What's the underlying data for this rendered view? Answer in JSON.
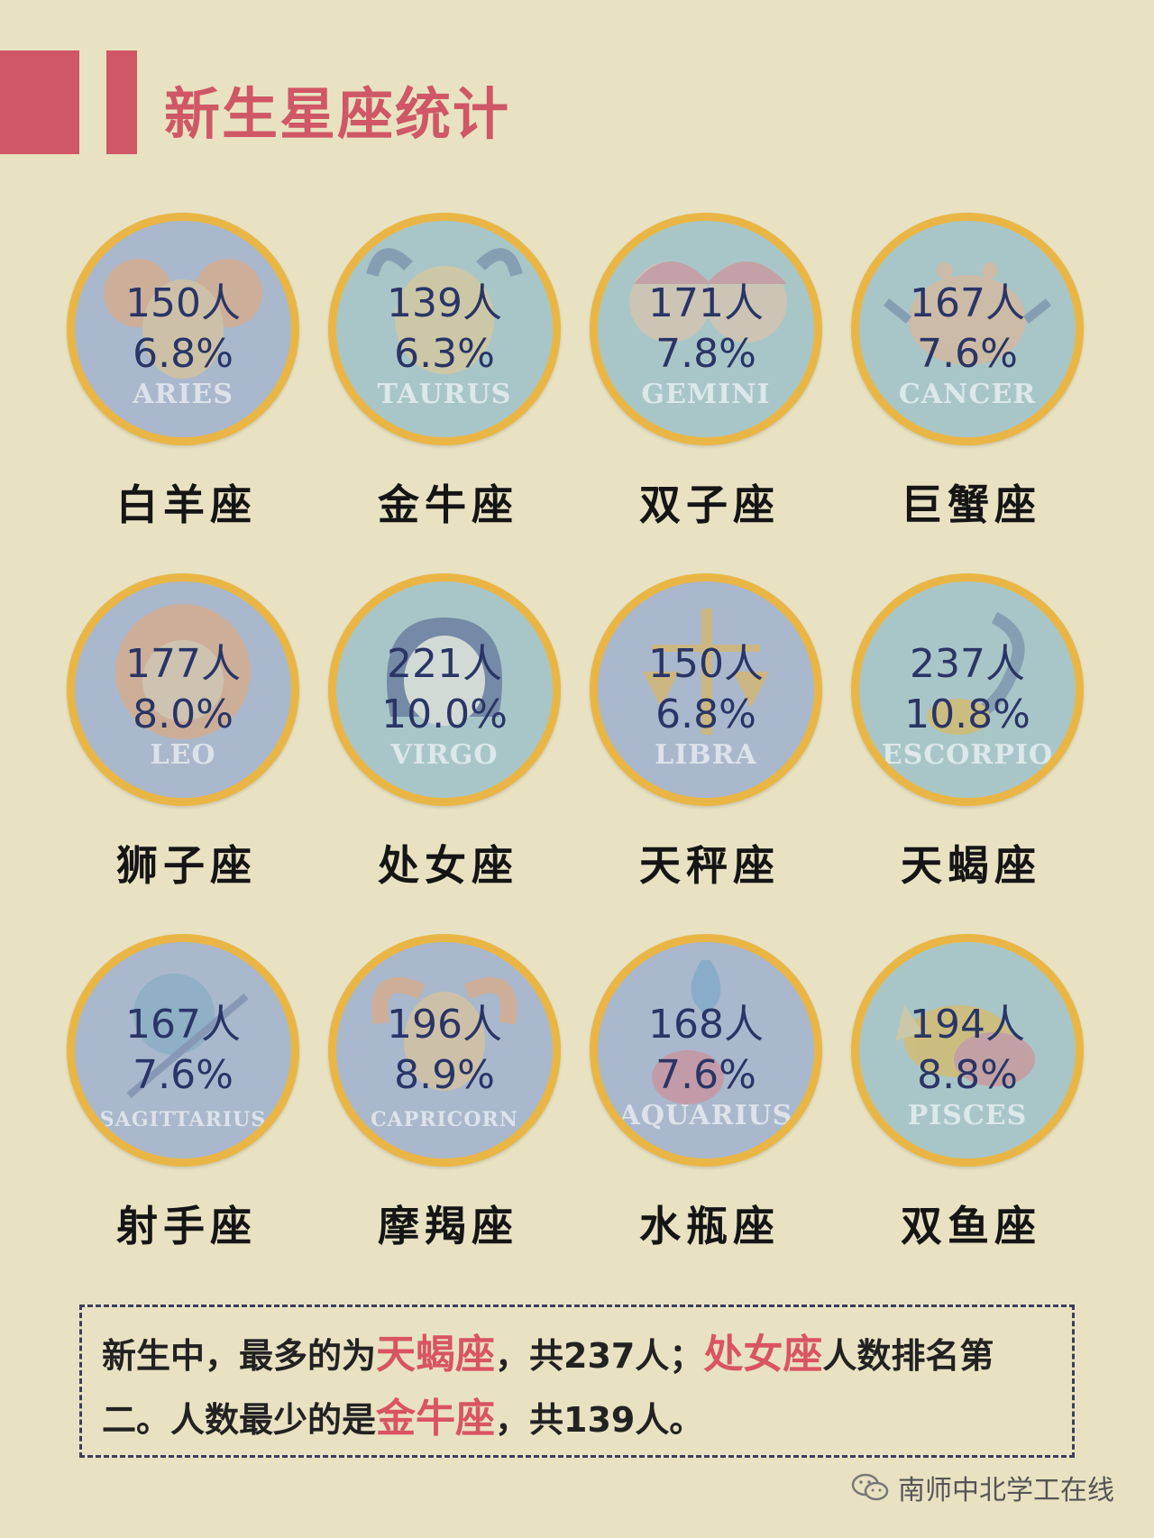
{
  "header": {
    "title": "新生星座统计"
  },
  "signs": [
    {
      "count": "150人",
      "pct": "6.8%",
      "en": "ARIES",
      "cn": "白羊座",
      "tone": "blue",
      "icon": "ram-icon"
    },
    {
      "count": "139人",
      "pct": "6.3%",
      "en": "TAURUS",
      "cn": "金牛座",
      "tone": "teal",
      "icon": "bull-icon"
    },
    {
      "count": "171人",
      "pct": "7.8%",
      "en": "GEMINI",
      "cn": "双子座",
      "tone": "teal",
      "icon": "twins-icon"
    },
    {
      "count": "167人",
      "pct": "7.6%",
      "en": "CANCER",
      "cn": "巨蟹座",
      "tone": "teal",
      "icon": "crab-icon"
    },
    {
      "count": "177人",
      "pct": "8.0%",
      "en": "LEO",
      "cn": "狮子座",
      "tone": "blue",
      "icon": "lion-icon"
    },
    {
      "count": "221人",
      "pct": "10.0%",
      "en": "VIRGO",
      "cn": "处女座",
      "tone": "teal",
      "icon": "maiden-icon"
    },
    {
      "count": "150人",
      "pct": "6.8%",
      "en": "LIBRA",
      "cn": "天秤座",
      "tone": "blue",
      "icon": "scales-icon"
    },
    {
      "count": "237人",
      "pct": "10.8%",
      "en": "ESCORPIO",
      "cn": "天蝎座",
      "tone": "teal",
      "icon": "scorpion-icon"
    },
    {
      "count": "167人",
      "pct": "7.6%",
      "en": "SAGITTARIUS",
      "cn": "射手座",
      "tone": "blue",
      "icon": "archer-icon"
    },
    {
      "count": "196人",
      "pct": "8.9%",
      "en": "CAPRICORN",
      "cn": "摩羯座",
      "tone": "blue",
      "icon": "goat-icon"
    },
    {
      "count": "168人",
      "pct": "7.6%",
      "en": "AQUARIUS",
      "cn": "水瓶座",
      "tone": "blue",
      "icon": "water-bearer-icon"
    },
    {
      "count": "194人",
      "pct": "8.8%",
      "en": "PISCES",
      "cn": "双鱼座",
      "tone": "teal",
      "icon": "fish-icon"
    }
  ],
  "summary": {
    "p1": "新生中，最多的为",
    "h1": "天蝎座",
    "p2": "，共237人；",
    "h2": "处女座",
    "p3": "人数排名第二。人数最少的是",
    "h3": "金牛座",
    "p4": "，共139人。"
  },
  "watermark": {
    "text": "南师中北学工在线",
    "icon": "wechat-icon"
  },
  "colors": {
    "background": "#e8e2c2",
    "accent": "#cf5766",
    "rim": "#e9b646",
    "stat_text": "#2a3566"
  }
}
